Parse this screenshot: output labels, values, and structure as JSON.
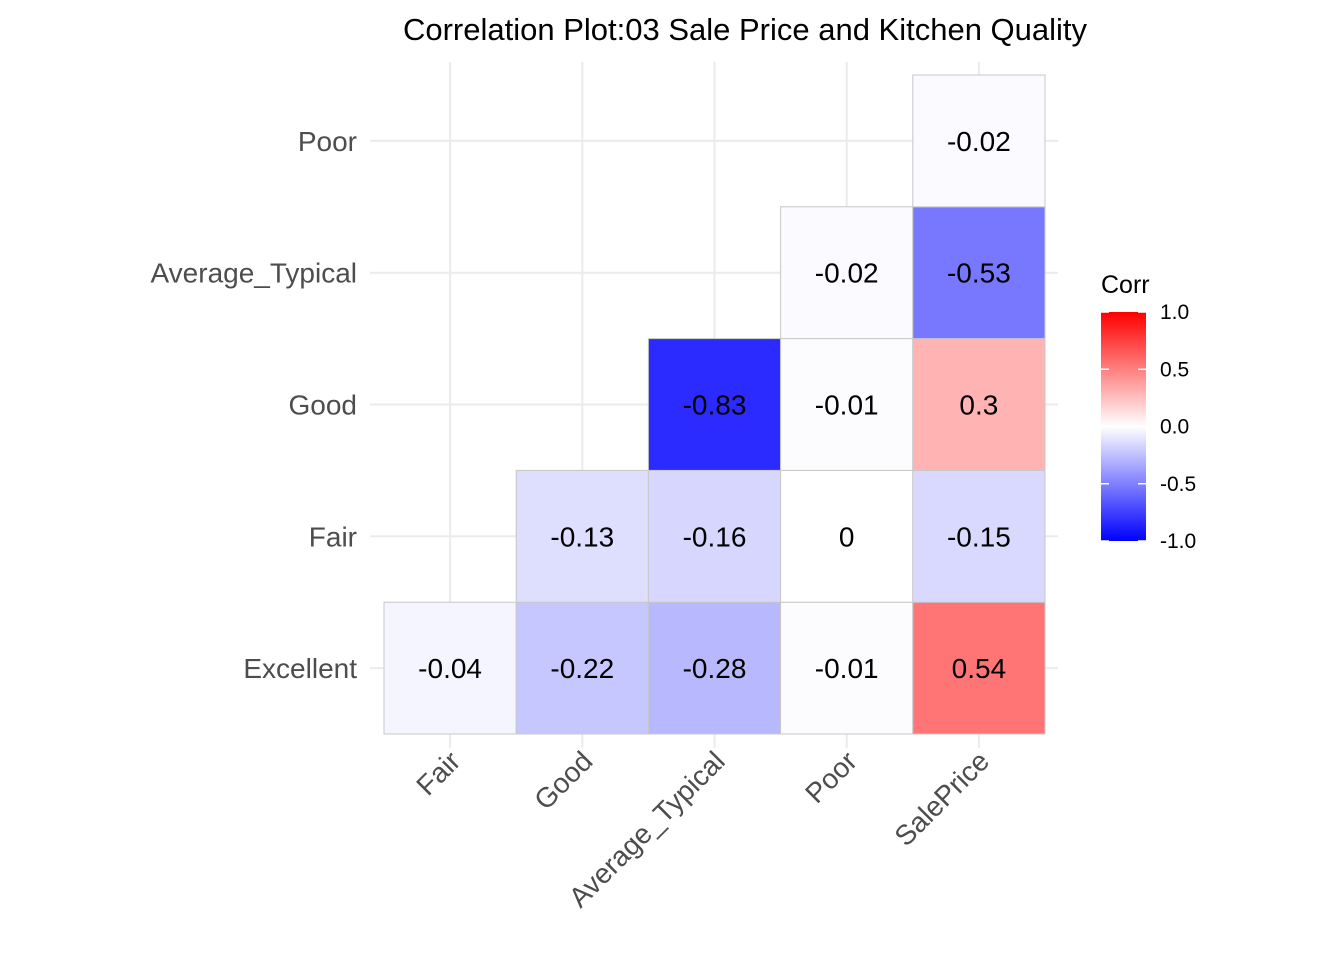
{
  "chart_data": {
    "type": "heatmap",
    "title": "Correlation Plot:03 Sale Price and Kitchen Quality",
    "x_categories": [
      "Fair",
      "Good",
      "Average_Typical",
      "Poor",
      "SalePrice"
    ],
    "y_categories": [
      "Excellent",
      "Fair",
      "Good",
      "Average_Typical",
      "Poor"
    ],
    "cells": [
      {
        "x": "Fair",
        "y": "Excellent",
        "value": -0.04,
        "label": "-0.04"
      },
      {
        "x": "Good",
        "y": "Excellent",
        "value": -0.22,
        "label": "-0.22"
      },
      {
        "x": "Average_Typical",
        "y": "Excellent",
        "value": -0.28,
        "label": "-0.28"
      },
      {
        "x": "Poor",
        "y": "Excellent",
        "value": -0.01,
        "label": "-0.01"
      },
      {
        "x": "SalePrice",
        "y": "Excellent",
        "value": 0.54,
        "label": "0.54"
      },
      {
        "x": "Good",
        "y": "Fair",
        "value": -0.13,
        "label": "-0.13"
      },
      {
        "x": "Average_Typical",
        "y": "Fair",
        "value": -0.16,
        "label": "-0.16"
      },
      {
        "x": "Poor",
        "y": "Fair",
        "value": 0,
        "label": "0"
      },
      {
        "x": "SalePrice",
        "y": "Fair",
        "value": -0.15,
        "label": "-0.15"
      },
      {
        "x": "Average_Typical",
        "y": "Good",
        "value": -0.83,
        "label": "-0.83"
      },
      {
        "x": "Poor",
        "y": "Good",
        "value": -0.01,
        "label": "-0.01"
      },
      {
        "x": "SalePrice",
        "y": "Good",
        "value": 0.3,
        "label": "0.3"
      },
      {
        "x": "Poor",
        "y": "Average_Typical",
        "value": -0.02,
        "label": "-0.02"
      },
      {
        "x": "SalePrice",
        "y": "Average_Typical",
        "value": -0.53,
        "label": "-0.53"
      },
      {
        "x": "SalePrice",
        "y": "Poor",
        "value": -0.02,
        "label": "-0.02"
      }
    ],
    "legend": {
      "title": "Corr",
      "range": [
        -1.0,
        1.0
      ],
      "ticks": [
        1.0,
        0.5,
        0.0,
        -0.5,
        -1.0
      ],
      "tick_labels": [
        "1.0",
        "0.5",
        "0.0",
        "-0.5",
        "-1.0"
      ],
      "low_color": "#0000ff",
      "mid_color": "#ffffff",
      "high_color": "#ff0000",
      "placement": "right"
    },
    "grid": true,
    "cell_border_color": "#c8c8c8",
    "grid_color": "#ebebeb"
  }
}
